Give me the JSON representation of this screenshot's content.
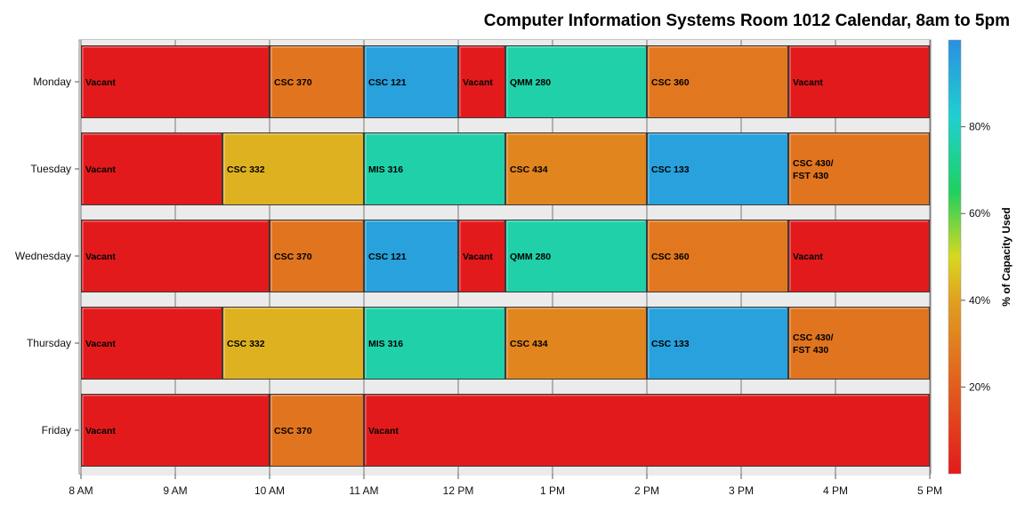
{
  "chart_data": {
    "type": "bar",
    "orientation": "horizontal-timeline",
    "title": "Computer Information Systems Room 1012 Calendar, 8am to 5pm",
    "x_axis": {
      "unit": "hours",
      "range": [
        8,
        17
      ],
      "ticks": [
        {
          "value": 8,
          "label": "8 AM"
        },
        {
          "value": 9,
          "label": "9 AM"
        },
        {
          "value": 10,
          "label": "10 AM"
        },
        {
          "value": 11,
          "label": "11 AM"
        },
        {
          "value": 12,
          "label": "12 PM"
        },
        {
          "value": 13,
          "label": "1 PM"
        },
        {
          "value": 14,
          "label": "2 PM"
        },
        {
          "value": 15,
          "label": "3 PM"
        },
        {
          "value": 16,
          "label": "4 PM"
        },
        {
          "value": 17,
          "label": "5 PM"
        }
      ],
      "grid": true
    },
    "categories": [
      "Monday",
      "Tuesday",
      "Wednesday",
      "Thursday",
      "Friday"
    ],
    "color_scale": {
      "title": "% of Capacity Used",
      "range": [
        0,
        100
      ],
      "ticks": [
        {
          "value": 20,
          "label": "20%"
        },
        {
          "value": 40,
          "label": "40%"
        },
        {
          "value": 60,
          "label": "60%"
        },
        {
          "value": 80,
          "label": "80%"
        }
      ],
      "stops": [
        {
          "offset": 0,
          "color": "#e31a1c"
        },
        {
          "offset": 0.4,
          "color": "#e0a020"
        },
        {
          "offset": 0.5,
          "color": "#d8d820"
        },
        {
          "offset": 0.65,
          "color": "#1fd060"
        },
        {
          "offset": 0.82,
          "color": "#20d0d0"
        },
        {
          "offset": 1,
          "color": "#2b8fe0"
        }
      ]
    },
    "rows": [
      {
        "day": "Monday",
        "segments": [
          {
            "start": 8,
            "end": 10,
            "label": "Vacant",
            "capacity": 0
          },
          {
            "start": 10,
            "end": 11,
            "label": "CSC 370",
            "capacity": 27
          },
          {
            "start": 11,
            "end": 12,
            "label": "CSC 121",
            "capacity": 95
          },
          {
            "start": 12,
            "end": 12.5,
            "label": "Vacant",
            "capacity": 0
          },
          {
            "start": 12.5,
            "end": 14,
            "label": "QMM 280",
            "capacity": 76
          },
          {
            "start": 14,
            "end": 15.5,
            "label": "CSC 360",
            "capacity": 28
          },
          {
            "start": 15.5,
            "end": 17,
            "label": "Vacant",
            "capacity": 0
          }
        ]
      },
      {
        "day": "Tuesday",
        "segments": [
          {
            "start": 8,
            "end": 9.5,
            "label": "Vacant",
            "capacity": 0
          },
          {
            "start": 9.5,
            "end": 11,
            "label": "CSC 332",
            "capacity": 43
          },
          {
            "start": 11,
            "end": 12.5,
            "label": "MIS 316",
            "capacity": 76
          },
          {
            "start": 12.5,
            "end": 14,
            "label": "CSC 434",
            "capacity": 32
          },
          {
            "start": 14,
            "end": 15.5,
            "label": "CSC 133",
            "capacity": 95
          },
          {
            "start": 15.5,
            "end": 17,
            "label": "CSC 430/\nFST 430",
            "capacity": 27
          }
        ]
      },
      {
        "day": "Wednesday",
        "segments": [
          {
            "start": 8,
            "end": 10,
            "label": "Vacant",
            "capacity": 0
          },
          {
            "start": 10,
            "end": 11,
            "label": "CSC 370",
            "capacity": 27
          },
          {
            "start": 11,
            "end": 12,
            "label": "CSC 121",
            "capacity": 95
          },
          {
            "start": 12,
            "end": 12.5,
            "label": "Vacant",
            "capacity": 0
          },
          {
            "start": 12.5,
            "end": 14,
            "label": "QMM 280",
            "capacity": 76
          },
          {
            "start": 14,
            "end": 15.5,
            "label": "CSC 360",
            "capacity": 28
          },
          {
            "start": 15.5,
            "end": 17,
            "label": "Vacant",
            "capacity": 0
          }
        ]
      },
      {
        "day": "Thursday",
        "segments": [
          {
            "start": 8,
            "end": 9.5,
            "label": "Vacant",
            "capacity": 0
          },
          {
            "start": 9.5,
            "end": 11,
            "label": "CSC 332",
            "capacity": 43
          },
          {
            "start": 11,
            "end": 12.5,
            "label": "MIS 316",
            "capacity": 76
          },
          {
            "start": 12.5,
            "end": 14,
            "label": "CSC 434",
            "capacity": 32
          },
          {
            "start": 14,
            "end": 15.5,
            "label": "CSC 133",
            "capacity": 95
          },
          {
            "start": 15.5,
            "end": 17,
            "label": "CSC 430/\nFST 430",
            "capacity": 27
          }
        ]
      },
      {
        "day": "Friday",
        "segments": [
          {
            "start": 8,
            "end": 10,
            "label": "Vacant",
            "capacity": 0
          },
          {
            "start": 10,
            "end": 11,
            "label": "CSC 370",
            "capacity": 27
          },
          {
            "start": 11,
            "end": 17,
            "label": "Vacant",
            "capacity": 0
          }
        ]
      }
    ]
  }
}
